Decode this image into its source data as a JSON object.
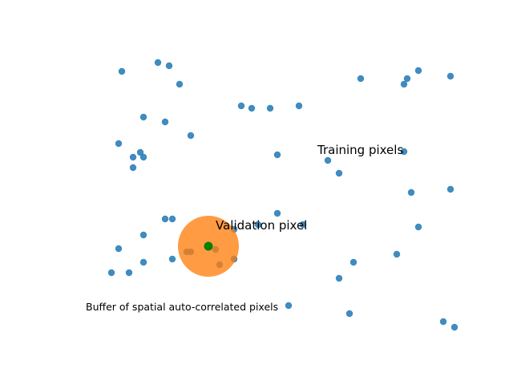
{
  "labels": {
    "training": "Training pixels",
    "validation": "Validation pixel",
    "buffer": "Buffer of spatial auto-correlated pixels"
  },
  "colors": {
    "training_points": "#1f77b4",
    "buffer": "#ff7f0e",
    "validation_point": "#008000",
    "background": "#ffffff"
  },
  "chart_data": {
    "type": "scatter",
    "title": "",
    "xlabel": "",
    "ylabel": "",
    "axes_visible": false,
    "grid": false,
    "xlim": [
      0,
      496
    ],
    "ylim": [
      0,
      370
    ],
    "series": [
      {
        "role": "training",
        "label_ref": "labels.training",
        "points": [
          [
            72,
            339
          ],
          [
            117,
            350
          ],
          [
            131,
            346
          ],
          [
            144,
            323
          ],
          [
            99,
            282
          ],
          [
            126,
            276
          ],
          [
            158,
            259
          ],
          [
            68,
            249
          ],
          [
            95,
            238
          ],
          [
            86,
            232
          ],
          [
            99,
            232
          ],
          [
            86,
            219
          ],
          [
            221,
            296
          ],
          [
            234,
            293
          ],
          [
            257,
            293
          ],
          [
            293,
            296
          ],
          [
            266,
            235
          ],
          [
            370,
            330
          ],
          [
            428,
            330
          ],
          [
            442,
            340
          ],
          [
            424,
            323
          ],
          [
            482,
            333
          ],
          [
            424,
            239
          ],
          [
            329,
            228
          ],
          [
            343,
            212
          ],
          [
            482,
            192
          ],
          [
            433,
            188
          ],
          [
            442,
            145
          ],
          [
            415,
            111
          ],
          [
            126,
            155
          ],
          [
            266,
            162
          ],
          [
            68,
            118
          ],
          [
            99,
            135
          ],
          [
            81,
            88
          ],
          [
            59,
            88
          ],
          [
            99,
            101
          ],
          [
            242,
            148
          ],
          [
            298,
            148
          ],
          [
            343,
            81
          ],
          [
            361,
            101
          ],
          [
            280,
            47
          ],
          [
            356,
            37
          ],
          [
            473,
            27
          ],
          [
            487,
            20
          ],
          [
            135,
            155
          ],
          [
            212,
            142
          ],
          [
            194,
            98
          ],
          [
            158,
            114
          ],
          [
            153,
            114
          ],
          [
            135,
            105
          ],
          [
            189,
            117
          ],
          [
            212,
            105
          ]
        ]
      },
      {
        "role": "validation",
        "label_ref": "labels.validation",
        "points": [
          [
            180,
            121
          ]
        ],
        "buffer_radius": 38
      }
    ]
  }
}
